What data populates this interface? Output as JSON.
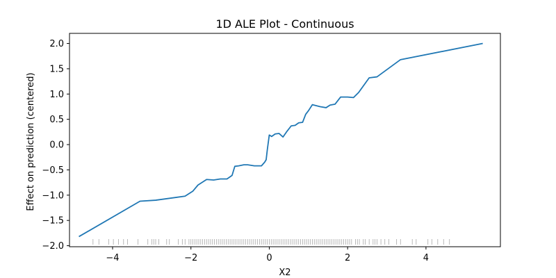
{
  "chart_data": {
    "type": "line",
    "title": "1D ALE Plot - Continuous",
    "xlabel": "X2",
    "ylabel": "Effect on prediction (centered)",
    "xlim": [
      -5.1,
      5.9
    ],
    "ylim": [
      -2.02,
      2.2
    ],
    "xticks": [
      -4,
      -2,
      0,
      2,
      4
    ],
    "xtick_labels": [
      "−4",
      "−2",
      "0",
      "2",
      "4"
    ],
    "yticks": [
      -2.0,
      -1.5,
      -1.0,
      -0.5,
      0.0,
      0.5,
      1.0,
      1.5,
      2.0
    ],
    "ytick_labels": [
      "−2.0",
      "−1.5",
      "−1.0",
      "−0.5",
      "0.0",
      "0.5",
      "1.0",
      "1.5",
      "2.0"
    ],
    "grid": false,
    "line_color": "#1f77b4",
    "series": [
      {
        "x": [
          -4.86,
          -3.3,
          -2.9,
          -2.15,
          -2.05,
          -1.95,
          -1.82,
          -1.6,
          -1.42,
          -1.25,
          -1.08,
          -0.95,
          -0.88,
          -0.78,
          -0.65,
          -0.55,
          -0.38,
          -0.2,
          -0.12,
          -0.08,
          -0.05,
          0.0,
          0.06,
          0.15,
          0.25,
          0.35,
          0.44,
          0.56,
          0.66,
          0.75,
          0.85,
          0.93,
          1.0,
          1.1,
          1.3,
          1.45,
          1.55,
          1.68,
          1.82,
          2.0,
          2.15,
          2.28,
          2.55,
          2.75,
          3.35,
          5.45
        ],
        "y": [
          -1.82,
          -1.12,
          -1.1,
          -1.02,
          -0.97,
          -0.92,
          -0.8,
          -0.69,
          -0.7,
          -0.68,
          -0.68,
          -0.61,
          -0.43,
          -0.42,
          -0.4,
          -0.4,
          -0.42,
          -0.42,
          -0.35,
          -0.3,
          -0.1,
          0.19,
          0.16,
          0.21,
          0.22,
          0.15,
          0.25,
          0.37,
          0.38,
          0.43,
          0.44,
          0.6,
          0.67,
          0.79,
          0.75,
          0.73,
          0.78,
          0.8,
          0.94,
          0.94,
          0.93,
          1.03,
          1.32,
          1.34,
          1.68,
          2.0
        ]
      }
    ],
    "rug": [
      -4.5,
      -4.35,
      -4.1,
      -3.98,
      -3.85,
      -3.72,
      -3.62,
      -3.35,
      -3.1,
      -3.0,
      -2.95,
      -2.9,
      -2.82,
      -2.62,
      -2.55,
      -2.32,
      -2.22,
      -2.15,
      -2.05,
      -2.0,
      -1.95,
      -1.9,
      -1.85,
      -1.8,
      -1.75,
      -1.7,
      -1.65,
      -1.6,
      -1.55,
      -1.5,
      -1.45,
      -1.4,
      -1.35,
      -1.3,
      -1.25,
      -1.2,
      -1.15,
      -1.1,
      -1.05,
      -1.0,
      -0.95,
      -0.9,
      -0.85,
      -0.8,
      -0.75,
      -0.7,
      -0.65,
      -0.6,
      -0.55,
      -0.5,
      -0.45,
      -0.4,
      -0.35,
      -0.3,
      -0.25,
      -0.2,
      -0.15,
      -0.1,
      -0.05,
      0.0,
      0.05,
      0.1,
      0.15,
      0.2,
      0.25,
      0.3,
      0.35,
      0.4,
      0.45,
      0.5,
      0.55,
      0.6,
      0.65,
      0.7,
      0.75,
      0.8,
      0.85,
      0.9,
      0.95,
      1.0,
      1.05,
      1.1,
      1.15,
      1.2,
      1.25,
      1.3,
      1.35,
      1.4,
      1.45,
      1.5,
      1.55,
      1.6,
      1.65,
      1.7,
      1.75,
      1.8,
      1.85,
      1.9,
      1.95,
      2.0,
      2.05,
      2.1,
      2.2,
      2.25,
      2.3,
      2.4,
      2.45,
      2.55,
      2.65,
      2.7,
      2.75,
      2.85,
      2.95,
      3.05,
      3.25,
      3.35,
      3.65,
      3.75,
      4.05,
      4.15,
      4.3,
      4.45,
      4.6
    ]
  }
}
